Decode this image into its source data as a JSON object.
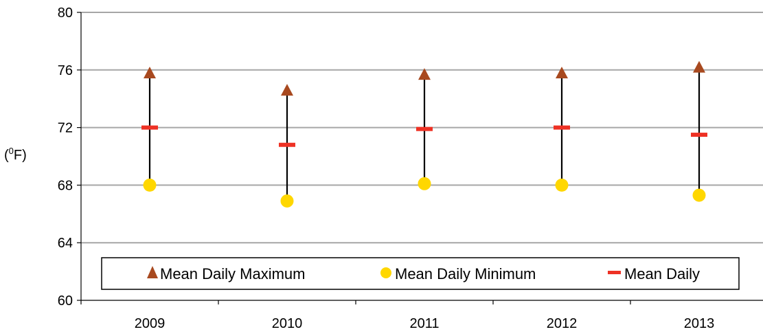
{
  "chart_data": {
    "type": "scatter",
    "categories": [
      "2009",
      "2010",
      "2011",
      "2012",
      "2013"
    ],
    "series": [
      {
        "name": "Mean Daily Maximum",
        "marker": "triangle",
        "color": "#a8491f",
        "values": [
          75.8,
          74.6,
          75.7,
          75.8,
          76.2
        ]
      },
      {
        "name": "Mean Daily Minimum",
        "marker": "circle",
        "color": "#ffd700",
        "values": [
          68.0,
          66.9,
          68.1,
          68.0,
          67.3
        ]
      },
      {
        "name": "Mean Daily",
        "marker": "dash",
        "color": "#ee3124",
        "values": [
          72.0,
          70.8,
          71.9,
          72.0,
          71.5
        ]
      }
    ],
    "ylabel_base": "(",
    "ylabel_sup": "0",
    "ylabel_unit": "F)",
    "ylim": [
      60,
      80
    ],
    "yticks": [
      "60",
      "64",
      "68",
      "72",
      "76",
      "80"
    ],
    "grid": true,
    "legend": "bottom-inside",
    "colors": {
      "gridline": "#a6a6a6",
      "range_line": "#000000"
    }
  }
}
